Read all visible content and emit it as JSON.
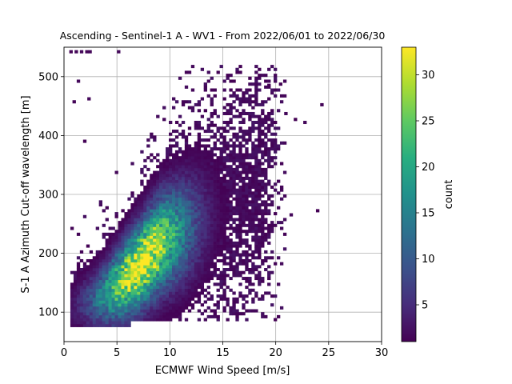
{
  "chart_data": {
    "type": "heatmap",
    "title": "Ascending - Sentinel-1 A - WV1 - From 2022/06/01 to 2022/06/30",
    "xlabel": "ECMWF Wind Speed [m/s]",
    "ylabel": "S-1 A Azimuth Cut-off wavelength [m]",
    "xlim": [
      0,
      30
    ],
    "ylim": [
      50,
      550
    ],
    "x_ticks": [
      0,
      5,
      10,
      15,
      20,
      25,
      30
    ],
    "y_ticks": [
      100,
      200,
      300,
      400,
      500
    ],
    "x_tick_labels": [
      "0",
      "5",
      "10",
      "15",
      "20",
      "25",
      "30"
    ],
    "y_tick_labels": [
      "100",
      "200",
      "300",
      "400",
      "500"
    ],
    "grid": true,
    "colormap": "viridis",
    "colorbar": {
      "label": "count",
      "range": [
        1,
        33
      ],
      "ticks": [
        5,
        10,
        15,
        20,
        25,
        30
      ],
      "tick_labels": [
        "5",
        "10",
        "15",
        "20",
        "25",
        "30"
      ]
    },
    "bin_size": {
      "x": 0.3,
      "y": 5
    },
    "density_ridge": {
      "x": [
        1,
        2,
        3,
        4,
        5,
        6,
        7,
        8,
        9,
        10,
        12,
        14,
        16,
        18
      ],
      "y": [
        110,
        115,
        120,
        130,
        145,
        160,
        175,
        195,
        215,
        225,
        245,
        265,
        285,
        310
      ],
      "peak_count": 33
    },
    "outliers": [
      {
        "x": 0.5,
        "y": 545
      },
      {
        "x": 1.0,
        "y": 545
      },
      {
        "x": 1.5,
        "y": 545
      },
      {
        "x": 2.0,
        "y": 545
      },
      {
        "x": 2.3,
        "y": 545
      },
      {
        "x": 5.0,
        "y": 545
      },
      {
        "x": 1.2,
        "y": 495
      },
      {
        "x": 0.8,
        "y": 460
      },
      {
        "x": 2.2,
        "y": 465
      },
      {
        "x": 1.8,
        "y": 393
      },
      {
        "x": 24.2,
        "y": 455
      },
      {
        "x": 22.6,
        "y": 425
      },
      {
        "x": 23.8,
        "y": 275
      },
      {
        "x": 21.3,
        "y": 268
      },
      {
        "x": 20.3,
        "y": 490
      },
      {
        "x": 19.2,
        "y": 488
      },
      {
        "x": 20.8,
        "y": 440
      },
      {
        "x": 21.7,
        "y": 430
      }
    ],
    "colors": {
      "low": "#440154",
      "mid": "#21918c",
      "high": "#fde725"
    }
  }
}
